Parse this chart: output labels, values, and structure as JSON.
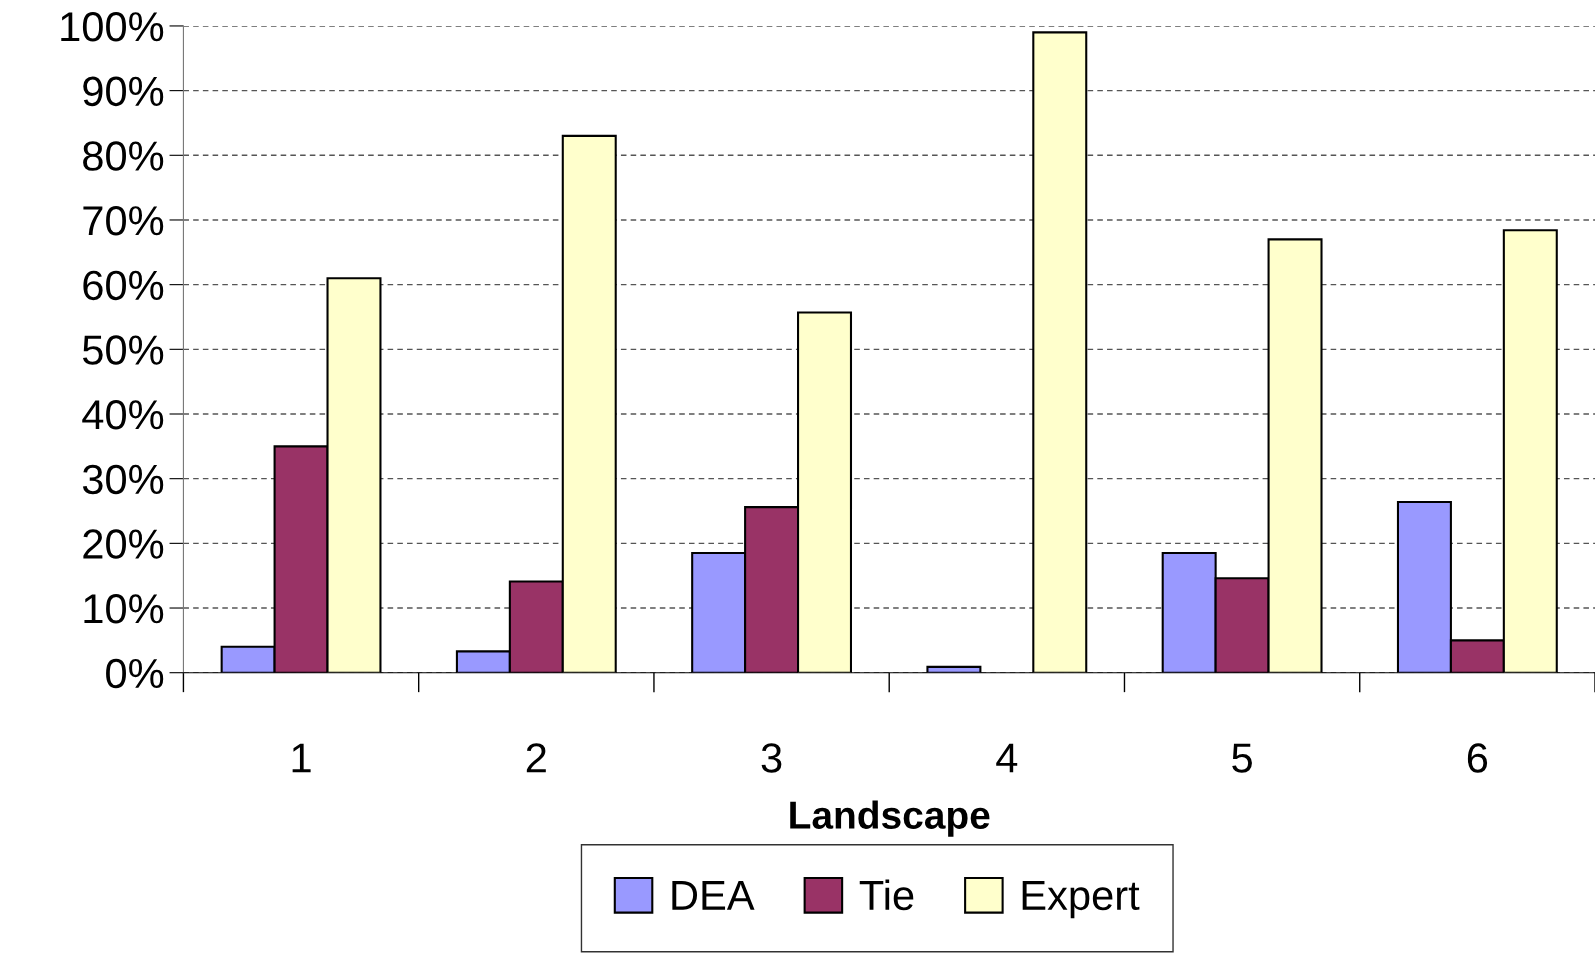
{
  "chart_data": {
    "type": "bar",
    "xlabel": "Landscape",
    "categories": [
      "1",
      "2",
      "3",
      "4",
      "5",
      "6"
    ],
    "series": [
      {
        "name": "DEA",
        "color": "#9999ff",
        "values": [
          4,
          3.3,
          18.5,
          0.9,
          18.5,
          26.4
        ]
      },
      {
        "name": "Tie",
        "color": "#993366",
        "values": [
          35,
          14.1,
          25.6,
          null,
          14.6,
          5
        ]
      },
      {
        "name": "Expert",
        "color": "#ffffcc",
        "values": [
          61,
          83,
          55.7,
          99,
          67,
          68.4
        ]
      }
    ],
    "ylim": [
      0,
      100
    ],
    "yticks": [
      {
        "value": 0,
        "label": "0%"
      },
      {
        "value": 10,
        "label": "10%"
      },
      {
        "value": 20,
        "label": "20%"
      },
      {
        "value": 30,
        "label": "30%"
      },
      {
        "value": 40,
        "label": "40%"
      },
      {
        "value": 50,
        "label": "50%"
      },
      {
        "value": 60,
        "label": "60%"
      },
      {
        "value": 70,
        "label": "70%"
      },
      {
        "value": 80,
        "label": "80%"
      },
      {
        "value": 90,
        "label": "90%"
      },
      {
        "value": 100,
        "label": "100%"
      }
    ],
    "grid": "y",
    "legend": "bottom"
  }
}
